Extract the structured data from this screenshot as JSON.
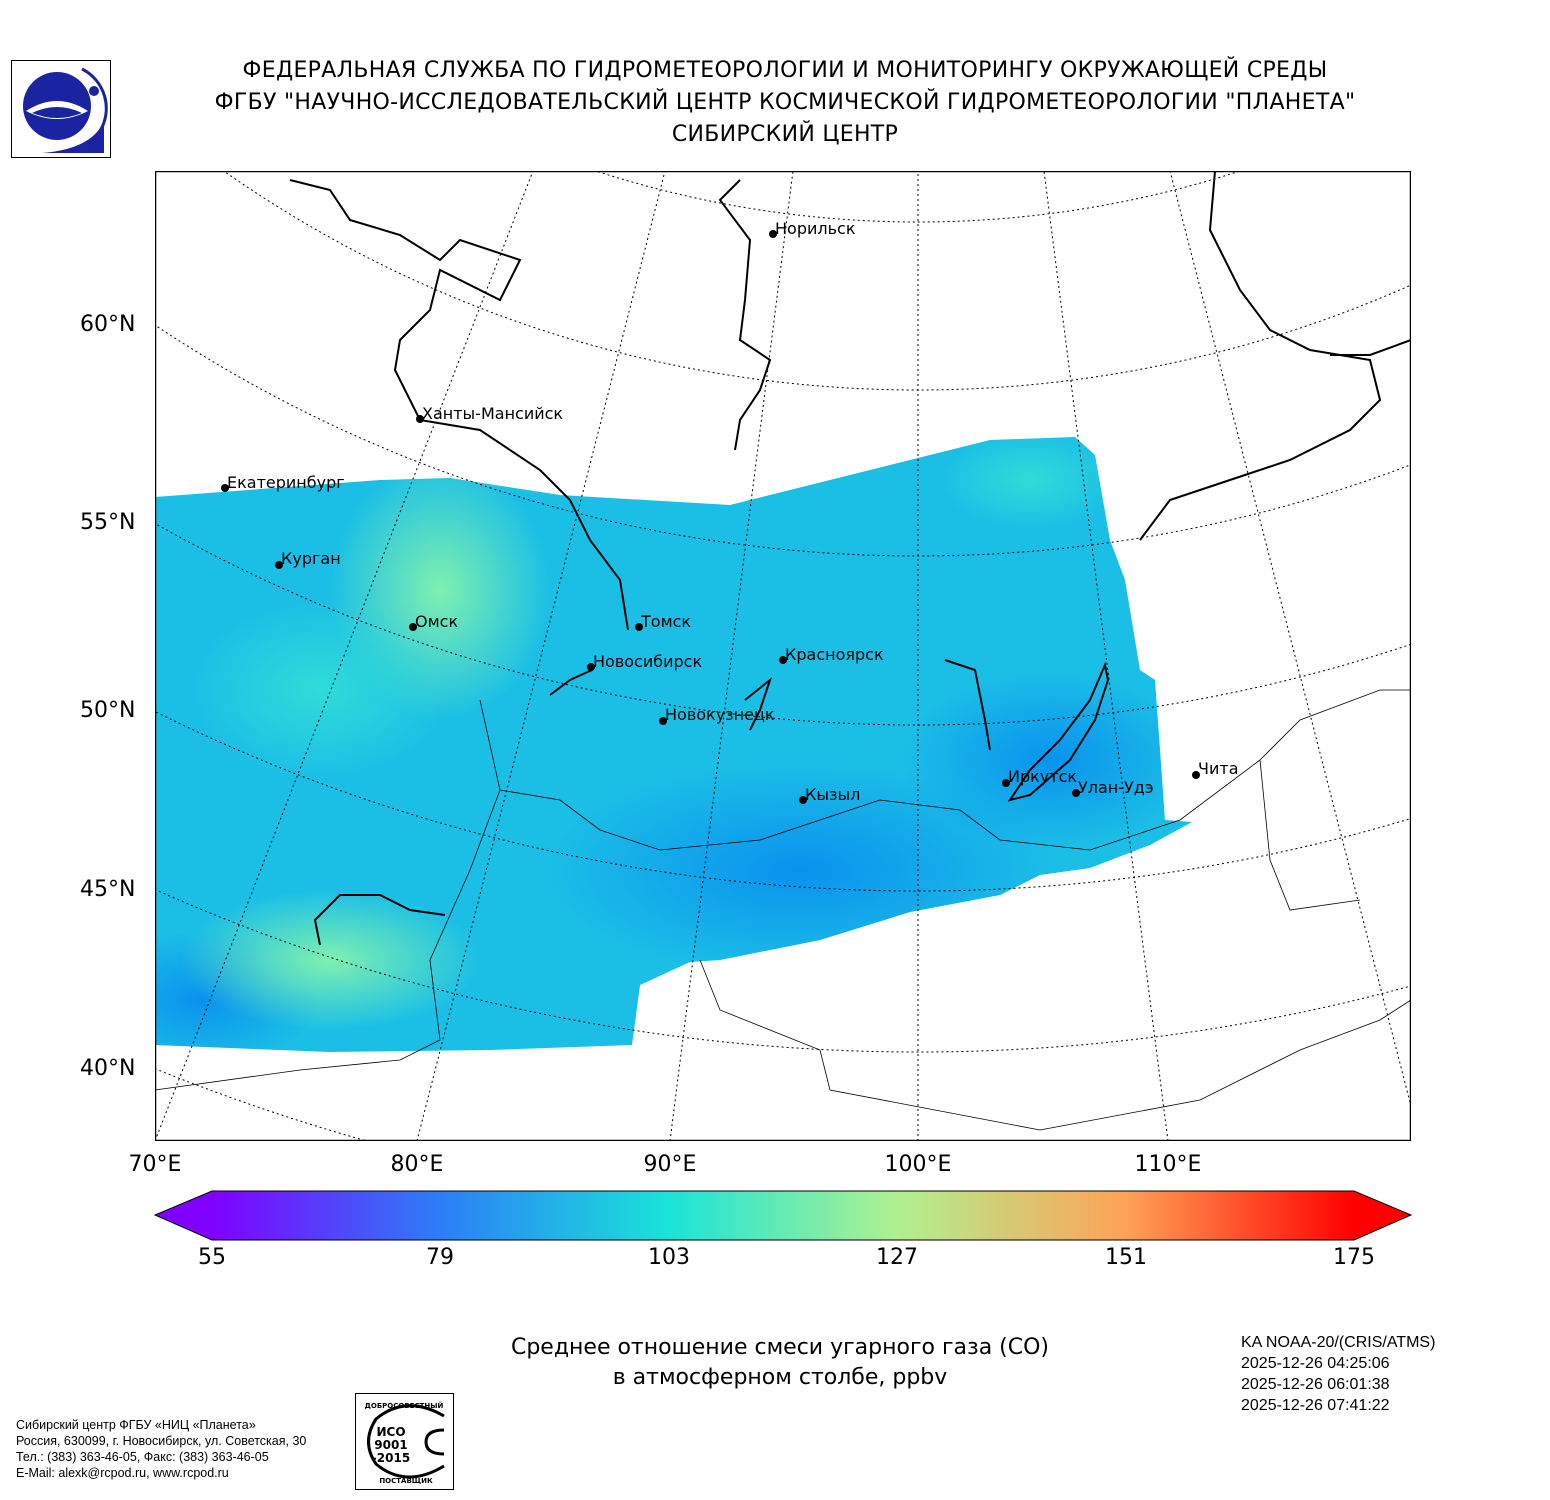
{
  "header": {
    "line1": "ФЕДЕРАЛЬНАЯ СЛУЖБА ПО ГИДРОМЕТЕОРОЛОГИИ И МОНИТОРИНГУ ОКРУЖАЮЩЕЙ СРЕДЫ",
    "line2": "ФГБУ \"НАУЧНО-ИССЛЕДОВАТЕЛЬСКИЙ ЦЕНТР КОСМИЧЕСКОЙ ГИДРОМЕТЕОРОЛОГИИ \"ПЛАНЕТА\"",
    "line3": "СИБИРСКИЙ ЦЕНТР"
  },
  "map": {
    "lat_labels": [
      "60°N",
      "55°N",
      "50°N",
      "45°N",
      "40°N"
    ],
    "lon_labels": [
      "70°E",
      "80°E",
      "90°E",
      "100°E",
      "110°E"
    ],
    "cities": [
      "Норильск",
      "Ханты-Мансийск",
      "Екатеринбург",
      "Курган",
      "Омск",
      "Томск",
      "Новосибирск",
      "Красноярск",
      "Новокузнецк",
      "Кызыл",
      "Иркутск",
      "Улан-Удэ",
      "Чита"
    ]
  },
  "colorbar": {
    "ticks": [
      "55",
      "79",
      "103",
      "127",
      "151",
      "175"
    ],
    "min": 55,
    "max": 175,
    "colormap": [
      "#8000ff",
      "#2c7ef7",
      "#1ae4d8",
      "#b0f090",
      "#ffa256",
      "#ff0000"
    ]
  },
  "title": {
    "line1": "Среднее отношение смеси угарного газа (CO)",
    "line2": "в атмосферном столбе, ppbv"
  },
  "satellite": {
    "name": "KA NOAA-20/(CRIS/ATMS)",
    "passes": [
      "2025-12-26 04:25:06",
      "2025-12-26 06:01:38",
      "2025-12-26 07:41:22"
    ]
  },
  "contact": {
    "line1": "Сибирский центр ФГБУ «НИЦ «Планета»",
    "line2": "Россия, 630099, г. Новосибирск, ул. Советская, 30",
    "line3": "Тел.: (383) 363-46-05, Факс: (383) 363-46-05",
    "line4": "E-Mail: alexk@rcpod.ru, www.rcpod.ru"
  },
  "iso_badge": {
    "top": "ДОБРОСОВЕСТНЫЙ",
    "center": "ИСО 9001 -2015",
    "bottom": "ПОСТАВЩИК"
  }
}
